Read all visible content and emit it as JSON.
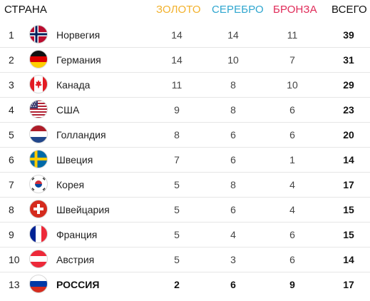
{
  "header": {
    "country": "СТРАНА",
    "gold": "ЗОЛОТО",
    "silver": "СЕРЕБРО",
    "bronze": "БРОНЗА",
    "total": "ВСЕГО",
    "colors": {
      "gold": "#f2b12c",
      "silver": "#2fa6cf",
      "bronze": "#e02a58"
    }
  },
  "rows": [
    {
      "rank": "1",
      "name": "Норвегия",
      "flag": "norway-flag-icon",
      "gold": "14",
      "silver": "14",
      "bronze": "11",
      "total": "39"
    },
    {
      "rank": "2",
      "name": "Германия",
      "flag": "germany-flag-icon",
      "gold": "14",
      "silver": "10",
      "bronze": "7",
      "total": "31"
    },
    {
      "rank": "3",
      "name": "Канада",
      "flag": "canada-flag-icon",
      "gold": "11",
      "silver": "8",
      "bronze": "10",
      "total": "29"
    },
    {
      "rank": "4",
      "name": "США",
      "flag": "usa-flag-icon",
      "gold": "9",
      "silver": "8",
      "bronze": "6",
      "total": "23"
    },
    {
      "rank": "5",
      "name": "Голландия",
      "flag": "netherlands-flag-icon",
      "gold": "8",
      "silver": "6",
      "bronze": "6",
      "total": "20"
    },
    {
      "rank": "6",
      "name": "Швеция",
      "flag": "sweden-flag-icon",
      "gold": "7",
      "silver": "6",
      "bronze": "1",
      "total": "14"
    },
    {
      "rank": "7",
      "name": "Корея",
      "flag": "korea-flag-icon",
      "gold": "5",
      "silver": "8",
      "bronze": "4",
      "total": "17"
    },
    {
      "rank": "8",
      "name": "Швейцария",
      "flag": "switzerland-flag-icon",
      "gold": "5",
      "silver": "6",
      "bronze": "4",
      "total": "15"
    },
    {
      "rank": "9",
      "name": "Франция",
      "flag": "france-flag-icon",
      "gold": "5",
      "silver": "4",
      "bronze": "6",
      "total": "15"
    },
    {
      "rank": "10",
      "name": "Австрия",
      "flag": "austria-flag-icon",
      "gold": "5",
      "silver": "3",
      "bronze": "6",
      "total": "14"
    },
    {
      "rank": "13",
      "name": "РОССИЯ",
      "flag": "russia-flag-icon",
      "gold": "2",
      "silver": "6",
      "bronze": "9",
      "total": "17"
    }
  ]
}
